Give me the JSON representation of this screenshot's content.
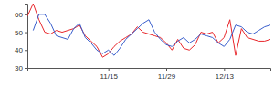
{
  "chart_data": {
    "type": "line",
    "categories": [
      null,
      null,
      null,
      null,
      null,
      null,
      null,
      null,
      null,
      null,
      null,
      null,
      null,
      null,
      "11/15",
      null,
      null,
      null,
      null,
      null,
      null,
      null,
      null,
      null,
      "11/29",
      null,
      null,
      null,
      null,
      null,
      null,
      null,
      null,
      null,
      "12/13",
      null,
      null,
      null,
      null,
      null,
      null,
      null,
      null
    ],
    "series": [
      {
        "color": "#e8262b",
        "values": [
          59,
          66,
          57,
          50,
          49,
          51,
          50,
          51,
          52,
          54,
          48,
          45,
          42,
          36,
          38,
          42,
          45,
          47,
          49,
          53,
          50,
          49,
          48,
          47,
          44,
          40,
          46,
          41,
          40,
          43,
          50,
          49,
          50,
          44,
          47,
          57,
          37,
          52,
          47,
          46,
          45,
          45,
          46
        ]
      },
      {
        "color": "#3a5fcd",
        "values": [
          null,
          51,
          60,
          60,
          55,
          48,
          47,
          46,
          52,
          55,
          47,
          44,
          40,
          38,
          40,
          37,
          41,
          46,
          49,
          52,
          55,
          57,
          50,
          46,
          43,
          42,
          45,
          47,
          44,
          46,
          49,
          48,
          47,
          44,
          42,
          46,
          54,
          53,
          50,
          49,
          51,
          53,
          54
        ]
      }
    ],
    "ylim": [
      30,
      66
    ],
    "yticks": [
      30,
      40,
      50,
      60
    ]
  }
}
